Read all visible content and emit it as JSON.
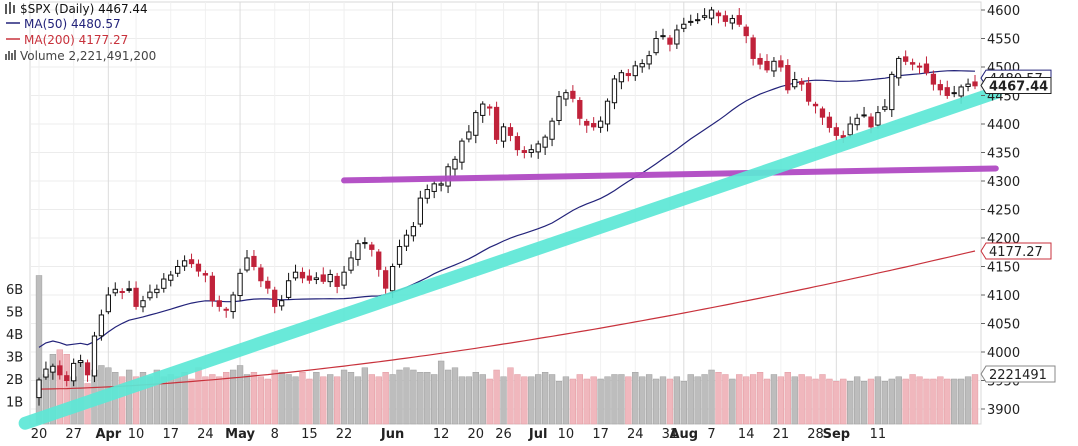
{
  "chart_data": {
    "type": "candlestick",
    "title": "$SPX (Daily) 4467.44",
    "symbol": "$SPX",
    "period": "Daily",
    "last": 4467.44,
    "legend": [
      {
        "label": "MA(50) 4480.57",
        "color": "#23237a"
      },
      {
        "label": "MA(200) 4177.27",
        "color": "#c8323c"
      },
      {
        "label": "Volume 2,221,491,200",
        "color": "#666666"
      }
    ],
    "price_axis": {
      "ticks": [
        3900,
        3950,
        4000,
        4050,
        4100,
        4150,
        4200,
        4250,
        4300,
        4350,
        4400,
        4450,
        4500,
        4550,
        4600
      ],
      "tick_labels": [
        "3900",
        "3950",
        "4000",
        "4050",
        "4100",
        "4150",
        "4200",
        "4250",
        "4300",
        "4350",
        "4400",
        "4450",
        "4500",
        "4550",
        "4600"
      ],
      "ylim": [
        3880,
        4610
      ]
    },
    "volume_axis": {
      "ticks": [
        1,
        2,
        3,
        4,
        5,
        6
      ],
      "tick_labels": [
        "1B",
        "2B",
        "3B",
        "4B",
        "5B",
        "6B"
      ],
      "ylim": [
        0,
        9.3
      ]
    },
    "x_axis": {
      "labels": [
        {
          "text": "20",
          "i": 0,
          "bold": false
        },
        {
          "text": "27",
          "i": 5,
          "bold": false
        },
        {
          "text": "Apr",
          "i": 10,
          "bold": true
        },
        {
          "text": "10",
          "i": 14,
          "bold": false
        },
        {
          "text": "17",
          "i": 19,
          "bold": false
        },
        {
          "text": "24",
          "i": 24,
          "bold": false
        },
        {
          "text": "May",
          "i": 29,
          "bold": true
        },
        {
          "text": "8",
          "i": 34,
          "bold": false
        },
        {
          "text": "15",
          "i": 39,
          "bold": false
        },
        {
          "text": "22",
          "i": 44,
          "bold": false
        },
        {
          "text": "Jun",
          "i": 51,
          "bold": true
        },
        {
          "text": "12",
          "i": 58,
          "bold": false
        },
        {
          "text": "20",
          "i": 63,
          "bold": false
        },
        {
          "text": "26",
          "i": 67,
          "bold": false
        },
        {
          "text": "Jul",
          "i": 72,
          "bold": true
        },
        {
          "text": "10",
          "i": 76,
          "bold": false
        },
        {
          "text": "17",
          "i": 81,
          "bold": false
        },
        {
          "text": "24",
          "i": 86,
          "bold": false
        },
        {
          "text": "31",
          "i": 91,
          "bold": false
        },
        {
          "text": "Aug",
          "i": 93,
          "bold": true
        },
        {
          "text": "7",
          "i": 97,
          "bold": false
        },
        {
          "text": "14",
          "i": 102,
          "bold": false
        },
        {
          "text": "21",
          "i": 107,
          "bold": false
        },
        {
          "text": "28",
          "i": 112,
          "bold": false
        },
        {
          "text": "Sep",
          "i": 115,
          "bold": true
        },
        {
          "text": "11",
          "i": 121,
          "bold": false
        }
      ]
    },
    "close": [
      3951,
      3970,
      3975,
      3960,
      3950,
      3980,
      3985,
      3960,
      4028,
      4065,
      4100,
      4110,
      4105,
      4108,
      4080,
      4090,
      4105,
      4110,
      4128,
      4135,
      4150,
      4160,
      4155,
      4142,
      4135,
      4090,
      4080,
      4075,
      4100,
      4138,
      4165,
      4150,
      4125,
      4112,
      4080,
      4090,
      4125,
      4140,
      4130,
      4126,
      4130,
      4124,
      4136,
      4115,
      4140,
      4165,
      4190,
      4192,
      4180,
      4145,
      4112,
      4150,
      4185,
      4205,
      4220,
      4270,
      4285,
      4295,
      4295,
      4325,
      4338,
      4370,
      4386,
      4420,
      4435,
      4428,
      4373,
      4395,
      4380,
      4355,
      4350,
      4355,
      4365,
      4377,
      4405,
      4448,
      4455,
      4445,
      4410,
      4398,
      4395,
      4405,
      4440,
      4479,
      4490,
      4485,
      4502,
      4506,
      4520,
      4550,
      4555,
      4540,
      4565,
      4575,
      4580,
      4582,
      4590,
      4600,
      4590,
      4580,
      4585,
      4575,
      4555,
      4515,
      4505,
      4495,
      4510,
      4500,
      4460,
      4478,
      4470,
      4440,
      4432,
      4412,
      4394,
      4380,
      4376,
      4400,
      4410,
      4415,
      4395,
      4420,
      4430,
      4487,
      4515,
      4510,
      4505,
      4500,
      4490,
      4470,
      4460,
      4450,
      4455,
      4465,
      4470,
      4467
    ],
    "volume_bn": [
      6.6,
      2.2,
      3.1,
      3.3,
      3.1,
      2.1,
      2.8,
      1.8,
      2.4,
      2.6,
      2.5,
      2.3,
      2.1,
      2.4,
      2.1,
      2.3,
      2.1,
      2.4,
      2.1,
      2.2,
      2.1,
      2.3,
      2.0,
      2.5,
      2.1,
      2.2,
      2.1,
      2.3,
      2.4,
      2.6,
      2.2,
      2.3,
      2.1,
      2.0,
      2.4,
      2.3,
      2.2,
      2.1,
      2.3,
      2.0,
      2.3,
      2.1,
      2.2,
      2.1,
      2.4,
      2.3,
      2.1,
      2.5,
      2.2,
      2.1,
      2.3,
      2.2,
      2.4,
      2.5,
      2.4,
      2.3,
      2.3,
      2.2,
      2.8,
      2.4,
      2.5,
      2.1,
      2.1,
      2.3,
      2.2,
      2.0,
      2.4,
      2.1,
      2.5,
      2.2,
      2.1,
      2.1,
      2.2,
      2.3,
      2.2,
      1.9,
      2.1,
      2.0,
      2.2,
      2.0,
      2.1,
      2.0,
      2.1,
      2.2,
      2.2,
      2.1,
      2.3,
      2.1,
      2.2,
      2.0,
      2.1,
      2.0,
      2.1,
      1.9,
      2.2,
      2.1,
      2.2,
      2.4,
      2.3,
      2.2,
      2.0,
      2.2,
      2.1,
      2.2,
      2.3,
      2.0,
      2.2,
      2.1,
      2.3,
      2.1,
      2.2,
      2.1,
      2.0,
      2.2,
      2.0,
      1.9,
      2.0,
      1.9,
      2.1,
      1.9,
      2.0,
      2.1,
      1.9,
      2.0,
      2.1,
      2.0,
      2.2,
      2.1,
      2.0,
      2.0,
      2.1,
      2.0,
      2.0,
      2.0,
      2.1,
      2.2
    ],
    "ma50_endpoints": {
      "start": 4008,
      "end": 4480.57
    },
    "ma200_endpoints": {
      "start": 3935,
      "end": 4177.27
    },
    "price_markers": [
      {
        "label": "4467.44",
        "value": 4467.44,
        "style": "bold"
      },
      {
        "label": "4177.27",
        "value": 4177.27,
        "style": "red"
      },
      {
        "label": "4480.57",
        "value": 4480.57,
        "style": "blue"
      },
      {
        "label": "2221491",
        "value": 2.22,
        "axis": "volume",
        "style": "gray"
      }
    ],
    "annotations": [
      {
        "type": "horizontal-line",
        "color": "#b04ac4",
        "i_start": 44,
        "i_end": 138,
        "value_start": 4301,
        "value_end": 4322
      },
      {
        "type": "trend-line",
        "color": "#5de8d6",
        "i_start": -2,
        "i_end": 138,
        "value_start": 3875,
        "value_end": 4455
      }
    ]
  }
}
